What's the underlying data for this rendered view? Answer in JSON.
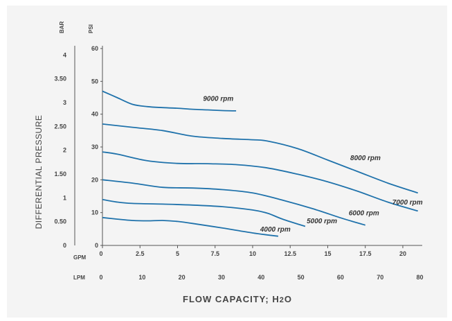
{
  "chart_data": {
    "type": "line",
    "ylabel": "DIFFERENTIAL PRESSURE",
    "xlabel": "FLOW CAPACITY; H2O",
    "y_units": {
      "bar": "BAR",
      "psi": "PSI"
    },
    "x_units": {
      "gpm": "GPM",
      "lpm": "LPM"
    },
    "psi_ticks": [
      0,
      10,
      20,
      30,
      40,
      50,
      60
    ],
    "bar_ticks": [
      "0",
      "0.50",
      "1",
      "1.50",
      "2",
      "2.50",
      "3",
      "3.50",
      "4"
    ],
    "bar_tick_values": [
      0,
      0.5,
      1,
      1.5,
      2,
      2.5,
      3,
      3.5,
      4
    ],
    "gpm_ticks": [
      "0",
      "2.5",
      "5",
      "7.5",
      "10",
      "12.5",
      "15",
      "17.5",
      "20"
    ],
    "gpm_tick_values": [
      0,
      2.5,
      5,
      7.5,
      10,
      12.5,
      15,
      17.5,
      20
    ],
    "lpm_ticks": [
      "0",
      "10",
      "20",
      "30",
      "40",
      "50",
      "60",
      "70",
      "80"
    ],
    "lpm_tick_values": [
      0,
      10,
      20,
      30,
      40,
      50,
      60,
      70,
      80
    ],
    "xlim_gpm": [
      0,
      21.2
    ],
    "ylim_psi": [
      0,
      60
    ],
    "x_unit_series": "GPM",
    "y_unit_series": "PSI",
    "series": [
      {
        "name": "9000 rpm",
        "x": [
          0,
          1,
          2,
          3,
          4,
          5,
          6,
          7,
          8,
          8.9
        ],
        "y": [
          47,
          45,
          43,
          42.3,
          42,
          41.8,
          41.5,
          41.3,
          41.1,
          41
        ]
      },
      {
        "name": "8000 rpm",
        "x": [
          0,
          2,
          4,
          6,
          8,
          10,
          11,
          13,
          15,
          17,
          19,
          21
        ],
        "y": [
          37,
          36,
          35,
          33.3,
          32.6,
          32.2,
          31.8,
          29.5,
          26,
          22.5,
          19,
          16
        ]
      },
      {
        "name": "7000 rpm",
        "x": [
          0,
          1,
          3,
          5,
          7,
          9,
          11,
          13,
          15,
          17,
          19,
          21
        ],
        "y": [
          28.5,
          27.8,
          25.8,
          25,
          24.9,
          24.6,
          23.6,
          21.7,
          19.4,
          16.5,
          13.2,
          10.5
        ]
      },
      {
        "name": "6000 rpm",
        "x": [
          0,
          2,
          4,
          6,
          8,
          10,
          12,
          14,
          16,
          17.5
        ],
        "y": [
          20,
          19,
          17.7,
          17.5,
          17,
          16,
          13.8,
          11.2,
          8.2,
          6.2
        ]
      },
      {
        "name": "5000 rpm",
        "x": [
          0,
          1,
          2,
          4,
          6,
          8,
          10,
          11,
          12,
          13.5
        ],
        "y": [
          14,
          13.2,
          12.8,
          12.6,
          12.3,
          11.8,
          10.8,
          9.8,
          8,
          5.8
        ]
      },
      {
        "name": "4000 rpm",
        "x": [
          0,
          1,
          2,
          3,
          4,
          5,
          6,
          8,
          10,
          11.7
        ],
        "y": [
          8.5,
          8,
          7.6,
          7.5,
          7.6,
          7.3,
          6.7,
          5.3,
          3.8,
          2.8
        ]
      }
    ],
    "grid": false,
    "legend": "inline labels"
  }
}
